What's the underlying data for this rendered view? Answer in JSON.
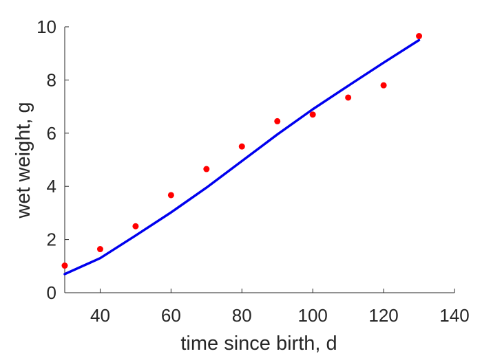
{
  "chart_data": {
    "type": "scatter",
    "title": "",
    "xlabel": "time since birth, d",
    "ylabel": "wet weight, g",
    "xlim": [
      30,
      140
    ],
    "ylim": [
      0,
      10
    ],
    "xticks": [
      40,
      60,
      80,
      100,
      120,
      140
    ],
    "yticks": [
      0,
      2,
      4,
      6,
      8,
      10
    ],
    "grid": false,
    "legend": "none",
    "series": [
      {
        "type": "scatter",
        "color": "#ff0000",
        "x": [
          30,
          40,
          50,
          60,
          70,
          80,
          90,
          100,
          110,
          120,
          130
        ],
        "y": [
          1.02,
          1.64,
          2.5,
          3.67,
          4.65,
          5.5,
          6.45,
          6.7,
          7.34,
          7.8,
          9.65
        ]
      },
      {
        "type": "line",
        "color": "#0000ee",
        "x": [
          30,
          40,
          50,
          60,
          70,
          80,
          90,
          100,
          110,
          120,
          130
        ],
        "y": [
          0.7,
          1.3,
          2.15,
          3.02,
          3.95,
          4.95,
          5.95,
          6.9,
          7.78,
          8.65,
          9.5
        ]
      }
    ]
  }
}
